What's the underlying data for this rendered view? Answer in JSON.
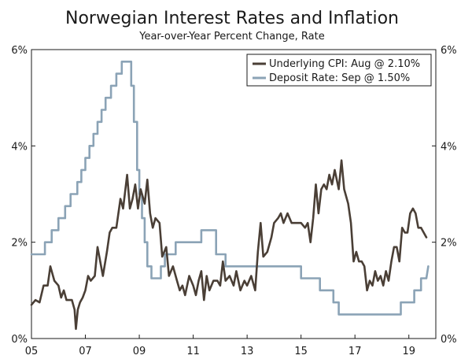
{
  "chart_data": {
    "type": "line",
    "title": "Norwegian Interest Rates and Inflation",
    "subtitle": "Year-over-Year Percent Change, Rate",
    "xlabel": "",
    "ylabel": "",
    "xlim": [
      2005.0,
      2020.0
    ],
    "ylim": [
      0,
      6
    ],
    "x_ticks": [
      {
        "value": 2005,
        "label": "05"
      },
      {
        "value": 2007,
        "label": "07"
      },
      {
        "value": 2009,
        "label": "09"
      },
      {
        "value": 2011,
        "label": "11"
      },
      {
        "value": 2013,
        "label": "13"
      },
      {
        "value": 2015,
        "label": "15"
      },
      {
        "value": 2017,
        "label": "17"
      },
      {
        "value": 2019,
        "label": "19"
      }
    ],
    "y_ticks": [
      {
        "value": 0,
        "label": "0%"
      },
      {
        "value": 2,
        "label": "2%"
      },
      {
        "value": 4,
        "label": "4%"
      },
      {
        "value": 6,
        "label": "6%"
      }
    ],
    "legend_position": "top-right",
    "series": [
      {
        "name": "Underlying CPI",
        "legend_label": "Underlying CPI: Aug @ 2.10%",
        "color": "#4a3f36",
        "points": [
          [
            2005.0,
            0.7
          ],
          [
            2005.15,
            0.8
          ],
          [
            2005.3,
            0.75
          ],
          [
            2005.45,
            1.1
          ],
          [
            2005.6,
            1.1
          ],
          [
            2005.7,
            1.5
          ],
          [
            2005.85,
            1.2
          ],
          [
            2006.0,
            1.1
          ],
          [
            2006.1,
            0.85
          ],
          [
            2006.2,
            1.0
          ],
          [
            2006.3,
            0.8
          ],
          [
            2006.5,
            0.8
          ],
          [
            2006.6,
            0.6
          ],
          [
            2006.65,
            0.2
          ],
          [
            2006.72,
            0.6
          ],
          [
            2006.8,
            0.75
          ],
          [
            2006.9,
            0.85
          ],
          [
            2007.0,
            1.0
          ],
          [
            2007.1,
            1.3
          ],
          [
            2007.2,
            1.2
          ],
          [
            2007.35,
            1.3
          ],
          [
            2007.45,
            1.9
          ],
          [
            2007.55,
            1.6
          ],
          [
            2007.65,
            1.3
          ],
          [
            2007.8,
            1.8
          ],
          [
            2007.9,
            2.2
          ],
          [
            2008.0,
            2.3
          ],
          [
            2008.15,
            2.3
          ],
          [
            2008.3,
            2.9
          ],
          [
            2008.4,
            2.7
          ],
          [
            2008.55,
            3.4
          ],
          [
            2008.65,
            2.7
          ],
          [
            2008.75,
            2.9
          ],
          [
            2008.85,
            3.2
          ],
          [
            2008.95,
            2.7
          ],
          [
            2009.05,
            3.1
          ],
          [
            2009.2,
            2.8
          ],
          [
            2009.3,
            3.3
          ],
          [
            2009.4,
            2.6
          ],
          [
            2009.5,
            2.3
          ],
          [
            2009.6,
            2.5
          ],
          [
            2009.75,
            2.4
          ],
          [
            2009.85,
            1.7
          ],
          [
            2010.0,
            1.9
          ],
          [
            2010.1,
            1.3
          ],
          [
            2010.25,
            1.5
          ],
          [
            2010.4,
            1.2
          ],
          [
            2010.5,
            1.0
          ],
          [
            2010.6,
            1.1
          ],
          [
            2010.7,
            0.9
          ],
          [
            2010.85,
            1.3
          ],
          [
            2011.0,
            1.1
          ],
          [
            2011.1,
            0.9
          ],
          [
            2011.2,
            1.2
          ],
          [
            2011.3,
            1.4
          ],
          [
            2011.4,
            0.8
          ],
          [
            2011.5,
            1.3
          ],
          [
            2011.6,
            1.0
          ],
          [
            2011.75,
            1.2
          ],
          [
            2011.9,
            1.2
          ],
          [
            2012.0,
            1.1
          ],
          [
            2012.1,
            1.6
          ],
          [
            2012.2,
            1.2
          ],
          [
            2012.35,
            1.3
          ],
          [
            2012.5,
            1.1
          ],
          [
            2012.6,
            1.4
          ],
          [
            2012.75,
            1.0
          ],
          [
            2012.9,
            1.2
          ],
          [
            2013.0,
            1.1
          ],
          [
            2013.15,
            1.3
          ],
          [
            2013.3,
            1.0
          ],
          [
            2013.4,
            1.8
          ],
          [
            2013.5,
            2.4
          ],
          [
            2013.6,
            1.7
          ],
          [
            2013.75,
            1.8
          ],
          [
            2013.9,
            2.1
          ],
          [
            2014.0,
            2.4
          ],
          [
            2014.15,
            2.5
          ],
          [
            2014.25,
            2.6
          ],
          [
            2014.35,
            2.4
          ],
          [
            2014.5,
            2.6
          ],
          [
            2014.65,
            2.4
          ],
          [
            2014.8,
            2.4
          ],
          [
            2015.0,
            2.4
          ],
          [
            2015.15,
            2.3
          ],
          [
            2015.25,
            2.4
          ],
          [
            2015.35,
            2.0
          ],
          [
            2015.45,
            2.5
          ],
          [
            2015.55,
            3.2
          ],
          [
            2015.65,
            2.6
          ],
          [
            2015.75,
            3.1
          ],
          [
            2015.85,
            3.2
          ],
          [
            2015.95,
            3.1
          ],
          [
            2016.05,
            3.4
          ],
          [
            2016.15,
            3.2
          ],
          [
            2016.25,
            3.5
          ],
          [
            2016.4,
            3.1
          ],
          [
            2016.5,
            3.7
          ],
          [
            2016.6,
            3.1
          ],
          [
            2016.75,
            2.8
          ],
          [
            2016.85,
            2.4
          ],
          [
            2016.95,
            1.6
          ],
          [
            2017.05,
            1.8
          ],
          [
            2017.15,
            1.6
          ],
          [
            2017.25,
            1.6
          ],
          [
            2017.35,
            1.5
          ],
          [
            2017.45,
            1.0
          ],
          [
            2017.55,
            1.2
          ],
          [
            2017.65,
            1.1
          ],
          [
            2017.75,
            1.4
          ],
          [
            2017.85,
            1.2
          ],
          [
            2017.95,
            1.3
          ],
          [
            2018.05,
            1.1
          ],
          [
            2018.15,
            1.4
          ],
          [
            2018.25,
            1.2
          ],
          [
            2018.35,
            1.6
          ],
          [
            2018.45,
            1.9
          ],
          [
            2018.55,
            1.9
          ],
          [
            2018.65,
            1.6
          ],
          [
            2018.75,
            2.3
          ],
          [
            2018.85,
            2.2
          ],
          [
            2018.95,
            2.2
          ],
          [
            2019.05,
            2.6
          ],
          [
            2019.15,
            2.7
          ],
          [
            2019.25,
            2.6
          ],
          [
            2019.35,
            2.3
          ],
          [
            2019.45,
            2.3
          ],
          [
            2019.55,
            2.2
          ],
          [
            2019.65,
            2.1
          ]
        ]
      },
      {
        "name": "Deposit Rate",
        "legend_label": "Deposit Rate: Sep @ 1.50%",
        "color": "#8ba3b6",
        "points": [
          [
            2005.0,
            1.75
          ],
          [
            2005.5,
            1.75
          ],
          [
            2005.5,
            2.0
          ],
          [
            2005.75,
            2.0
          ],
          [
            2005.75,
            2.25
          ],
          [
            2006.0,
            2.25
          ],
          [
            2006.0,
            2.5
          ],
          [
            2006.25,
            2.5
          ],
          [
            2006.25,
            2.75
          ],
          [
            2006.45,
            2.75
          ],
          [
            2006.45,
            3.0
          ],
          [
            2006.7,
            3.0
          ],
          [
            2006.7,
            3.25
          ],
          [
            2006.85,
            3.25
          ],
          [
            2006.85,
            3.5
          ],
          [
            2007.0,
            3.5
          ],
          [
            2007.0,
            3.75
          ],
          [
            2007.15,
            3.75
          ],
          [
            2007.15,
            4.0
          ],
          [
            2007.3,
            4.0
          ],
          [
            2007.3,
            4.25
          ],
          [
            2007.45,
            4.25
          ],
          [
            2007.45,
            4.5
          ],
          [
            2007.6,
            4.5
          ],
          [
            2007.6,
            4.75
          ],
          [
            2007.75,
            4.75
          ],
          [
            2007.75,
            5.0
          ],
          [
            2007.95,
            5.0
          ],
          [
            2007.95,
            5.25
          ],
          [
            2008.15,
            5.25
          ],
          [
            2008.15,
            5.5
          ],
          [
            2008.35,
            5.5
          ],
          [
            2008.35,
            5.75
          ],
          [
            2008.7,
            5.75
          ],
          [
            2008.7,
            5.25
          ],
          [
            2008.8,
            5.25
          ],
          [
            2008.8,
            4.5
          ],
          [
            2008.92,
            4.5
          ],
          [
            2008.92,
            3.5
          ],
          [
            2009.0,
            3.5
          ],
          [
            2009.0,
            3.0
          ],
          [
            2009.1,
            3.0
          ],
          [
            2009.1,
            2.5
          ],
          [
            2009.2,
            2.5
          ],
          [
            2009.2,
            2.0
          ],
          [
            2009.3,
            2.0
          ],
          [
            2009.3,
            1.5
          ],
          [
            2009.45,
            1.5
          ],
          [
            2009.45,
            1.25
          ],
          [
            2009.8,
            1.25
          ],
          [
            2009.8,
            1.5
          ],
          [
            2009.95,
            1.5
          ],
          [
            2009.95,
            1.75
          ],
          [
            2010.35,
            1.75
          ],
          [
            2010.35,
            2.0
          ],
          [
            2011.3,
            2.0
          ],
          [
            2011.3,
            2.25
          ],
          [
            2011.85,
            2.25
          ],
          [
            2011.85,
            1.75
          ],
          [
            2012.2,
            1.75
          ],
          [
            2012.2,
            1.5
          ],
          [
            2015.0,
            1.5
          ],
          [
            2015.0,
            1.25
          ],
          [
            2015.7,
            1.25
          ],
          [
            2015.7,
            1.0
          ],
          [
            2016.2,
            1.0
          ],
          [
            2016.2,
            0.75
          ],
          [
            2016.4,
            0.75
          ],
          [
            2016.4,
            0.5
          ],
          [
            2018.7,
            0.5
          ],
          [
            2018.7,
            0.75
          ],
          [
            2019.2,
            0.75
          ],
          [
            2019.2,
            1.0
          ],
          [
            2019.45,
            1.0
          ],
          [
            2019.45,
            1.25
          ],
          [
            2019.65,
            1.25
          ],
          [
            2019.72,
            1.5
          ]
        ]
      }
    ]
  }
}
